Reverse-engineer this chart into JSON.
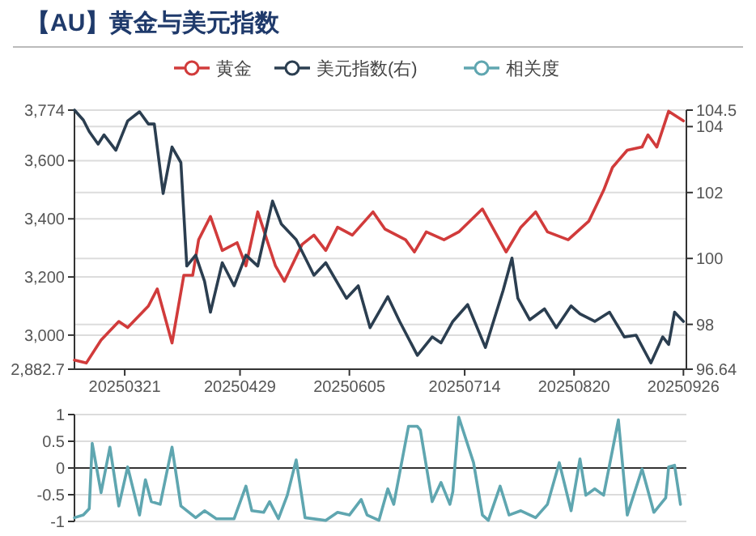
{
  "chart_data": [
    {
      "type": "line",
      "title": "【AU】黄金与美元指数",
      "grid": "y",
      "legend": "top",
      "xlim": [
        "2025-03-04",
        "2025-09-27"
      ],
      "xticks": [
        {
          "value": "2025-03-21",
          "label": "20250321"
        },
        {
          "value": "2025-04-29",
          "label": "20250429"
        },
        {
          "value": "2025-06-05",
          "label": "20250605"
        },
        {
          "value": "2025-07-14",
          "label": "20250714"
        },
        {
          "value": "2025-08-20",
          "label": "20250820"
        },
        {
          "value": "2025-09-26",
          "label": "20250926"
        }
      ],
      "ylim": [
        2882.7,
        3774
      ],
      "yticks": [
        {
          "value": 2882.7,
          "label": "2,882.7"
        },
        {
          "value": 3000,
          "label": "3,000"
        },
        {
          "value": 3200,
          "label": "3,200"
        },
        {
          "value": 3400,
          "label": "3,400"
        },
        {
          "value": 3600,
          "label": "3,600"
        },
        {
          "value": 3774,
          "label": "3,774"
        }
      ],
      "y2lim": [
        96.64,
        104.5
      ],
      "y2ticks": [
        96.64,
        98,
        100,
        102,
        104,
        104.5
      ],
      "series": [
        {
          "name": "黄金",
          "color": "#d13b3b",
          "x": [
            "2025-03-04",
            "2025-03-08",
            "2025-03-13",
            "2025-03-19",
            "2025-03-22",
            "2025-03-29",
            "2025-04-01",
            "2025-04-06",
            "2025-04-10",
            "2025-04-13",
            "2025-04-15",
            "2025-04-19",
            "2025-04-23",
            "2025-04-28",
            "2025-05-01",
            "2025-05-05",
            "2025-05-11",
            "2025-05-14",
            "2025-05-20",
            "2025-05-24",
            "2025-05-28",
            "2025-06-01",
            "2025-06-06",
            "2025-06-13",
            "2025-06-17",
            "2025-06-24",
            "2025-06-27",
            "2025-07-01",
            "2025-07-07",
            "2025-07-12",
            "2025-07-20",
            "2025-07-28",
            "2025-08-02",
            "2025-08-07",
            "2025-08-11",
            "2025-08-18",
            "2025-08-25",
            "2025-08-30",
            "2025-09-02",
            "2025-09-07",
            "2025-09-12",
            "2025-09-14",
            "2025-09-17",
            "2025-09-21",
            "2025-09-26"
          ],
          "values": [
            2914,
            2904,
            2983,
            3047,
            3026,
            3100,
            3159,
            2973,
            3206,
            3206,
            3328,
            3408,
            3291,
            3318,
            3238,
            3424,
            3238,
            3185,
            3312,
            3344,
            3291,
            3371,
            3344,
            3424,
            3365,
            3328,
            3286,
            3355,
            3328,
            3355,
            3434,
            3286,
            3371,
            3424,
            3355,
            3328,
            3392,
            3498,
            3577,
            3636,
            3647,
            3689,
            3647,
            3770,
            3737
          ]
        },
        {
          "name": "美元指数(右)",
          "color": "#2b3e50",
          "axis": "y2",
          "x": [
            "2025-03-04",
            "2025-03-07",
            "2025-03-09",
            "2025-03-12",
            "2025-03-14",
            "2025-03-18",
            "2025-03-22",
            "2025-03-26",
            "2025-03-29",
            "2025-03-31",
            "2025-04-03",
            "2025-04-06",
            "2025-04-09",
            "2025-04-11",
            "2025-04-14",
            "2025-04-17",
            "2025-04-19",
            "2025-04-23",
            "2025-04-27",
            "2025-05-01",
            "2025-05-05",
            "2025-05-10",
            "2025-05-13",
            "2025-05-18",
            "2025-05-24",
            "2025-05-28",
            "2025-06-04",
            "2025-06-08",
            "2025-06-12",
            "2025-06-18",
            "2025-06-22",
            "2025-06-28",
            "2025-07-03",
            "2025-07-06",
            "2025-07-10",
            "2025-07-15",
            "2025-07-21",
            "2025-07-27",
            "2025-07-30",
            "2025-08-01",
            "2025-08-05",
            "2025-08-10",
            "2025-08-14",
            "2025-08-19",
            "2025-08-22",
            "2025-08-27",
            "2025-09-01",
            "2025-09-06",
            "2025-09-10",
            "2025-09-15",
            "2025-09-19",
            "2025-09-21",
            "2025-09-23",
            "2025-09-26"
          ],
          "values": [
            104.5,
            104.2,
            103.85,
            103.47,
            103.75,
            103.28,
            104.17,
            104.45,
            104.08,
            104.08,
            101.97,
            103.38,
            102.91,
            99.77,
            100.1,
            99.31,
            98.37,
            99.87,
            99.17,
            100.1,
            99.77,
            101.74,
            101.04,
            100.57,
            99.49,
            99.87,
            98.79,
            99.17,
            97.9,
            98.84,
            98.09,
            97.06,
            97.62,
            97.44,
            98.09,
            98.6,
            97.3,
            99.03,
            100.01,
            98.79,
            98.14,
            98.47,
            97.9,
            98.56,
            98.32,
            98.09,
            98.37,
            97.62,
            97.67,
            96.83,
            97.62,
            97.39,
            98.37,
            98.09
          ]
        }
      ]
    },
    {
      "type": "line",
      "grid": "y",
      "legend": "top",
      "tick_labels": "y",
      "xlim": [
        "2025-03-04",
        "2025-09-27"
      ],
      "ylim": [
        -1,
        1
      ],
      "yticks": [
        -1,
        -0.5,
        0,
        0.5,
        1
      ],
      "series": [
        {
          "name": "相关度",
          "color": "#5fa6b0",
          "x": [
            "2025-03-04",
            "2025-03-07",
            "2025-03-09",
            "2025-03-10",
            "2025-03-13",
            "2025-03-16",
            "2025-03-19",
            "2025-03-22",
            "2025-03-26",
            "2025-03-28",
            "2025-03-30",
            "2025-04-02",
            "2025-04-06",
            "2025-04-09",
            "2025-04-14",
            "2025-04-17",
            "2025-04-21",
            "2025-04-27",
            "2025-05-01",
            "2025-05-03",
            "2025-05-07",
            "2025-05-09",
            "2025-05-12",
            "2025-05-15",
            "2025-05-18",
            "2025-05-21",
            "2025-05-28",
            "2025-06-01",
            "2025-06-05",
            "2025-06-09",
            "2025-06-11",
            "2025-06-15",
            "2025-06-18",
            "2025-06-20",
            "2025-06-25",
            "2025-06-28",
            "2025-06-29",
            "2025-07-03",
            "2025-07-06",
            "2025-07-09",
            "2025-07-10",
            "2025-07-12",
            "2025-07-17",
            "2025-07-20",
            "2025-07-22",
            "2025-07-26",
            "2025-07-29",
            "2025-08-02",
            "2025-08-07",
            "2025-08-11",
            "2025-08-15",
            "2025-08-19",
            "2025-08-22",
            "2025-08-24",
            "2025-08-27",
            "2025-08-30",
            "2025-09-04",
            "2025-09-07",
            "2025-09-12",
            "2025-09-16",
            "2025-09-20",
            "2025-09-21",
            "2025-09-23",
            "2025-09-25"
          ],
          "values": [
            -0.93,
            -0.88,
            -0.76,
            0.46,
            -0.46,
            0.39,
            -0.71,
            0.02,
            -0.88,
            -0.22,
            -0.63,
            -0.68,
            0.39,
            -0.71,
            -0.93,
            -0.8,
            -0.95,
            -0.95,
            -0.34,
            -0.8,
            -0.83,
            -0.63,
            -0.95,
            -0.51,
            0.15,
            -0.93,
            -0.98,
            -0.83,
            -0.88,
            -0.59,
            -0.88,
            -0.98,
            -0.39,
            -0.68,
            0.78,
            0.78,
            0.71,
            -0.63,
            -0.27,
            -0.68,
            -0.44,
            0.95,
            0.1,
            -0.88,
            -0.98,
            -0.34,
            -0.88,
            -0.8,
            -0.93,
            -0.68,
            0.1,
            -0.8,
            0.17,
            -0.51,
            -0.39,
            -0.51,
            0.9,
            -0.88,
            -0.02,
            -0.83,
            -0.56,
            0.02,
            0.05,
            -0.68
          ]
        }
      ]
    }
  ]
}
